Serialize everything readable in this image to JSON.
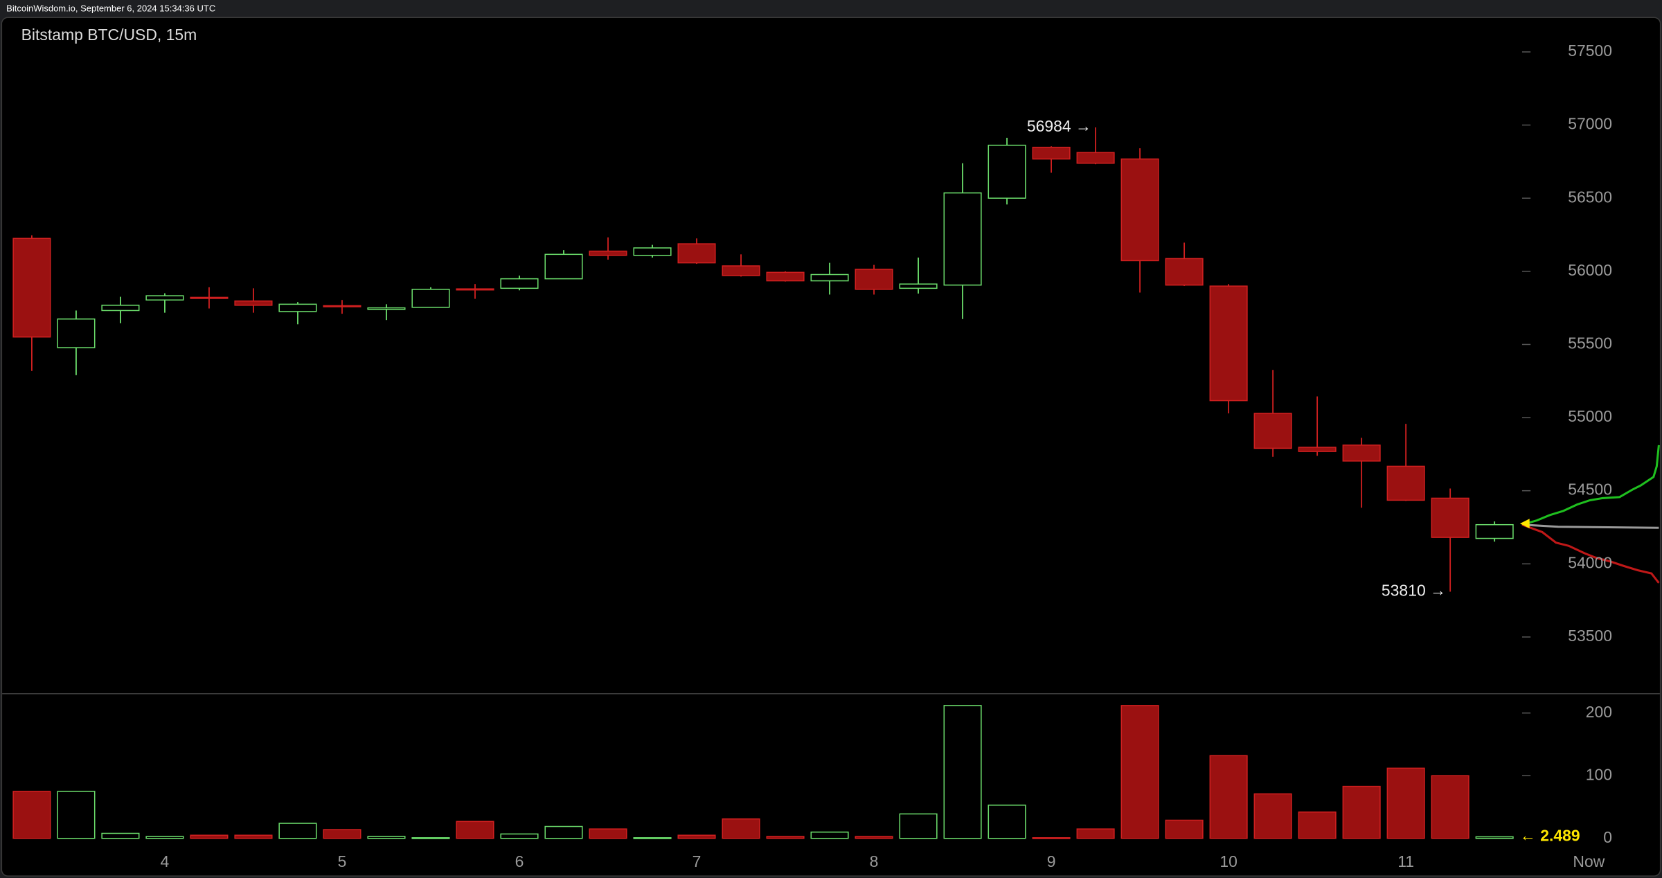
{
  "header": "BitcoinWisdom.io, September 6, 2024 15:34:36 UTC",
  "chart_data": {
    "type": "candlestick",
    "title": "Bitstamp BTC/USD, 15m",
    "categories": [
      null,
      null,
      null,
      "4",
      null,
      null,
      null,
      "5",
      null,
      null,
      null,
      "6",
      null,
      null,
      null,
      "7",
      null,
      null,
      null,
      "8",
      null,
      null,
      null,
      "9",
      null,
      null,
      null,
      "10",
      null,
      null,
      null,
      "11",
      null,
      null
    ],
    "x_end_label": "Now",
    "open": [
      56225,
      55478,
      55732,
      55804,
      55822,
      55797,
      55725,
      55765,
      55740,
      55754,
      55880,
      55884,
      55949,
      56138,
      56109,
      56188,
      56037,
      55993,
      55935,
      56014,
      55884,
      55906,
      56500,
      56848,
      56812,
      56768,
      56087,
      55899,
      55029,
      54797,
      54812,
      54667,
      54449,
      54174
    ],
    "high": [
      56246,
      55732,
      55826,
      55850,
      55891,
      55884,
      55790,
      55804,
      55775,
      55891,
      55913,
      55971,
      56145,
      56232,
      56181,
      56225,
      56116,
      56000,
      56058,
      56044,
      56094,
      56739,
      56913,
      56855,
      56984,
      56841,
      56196,
      55913,
      55326,
      55145,
      54862,
      54957,
      54515,
      54290
    ],
    "low": [
      55319,
      55290,
      55645,
      55717,
      55746,
      55717,
      55638,
      55710,
      55667,
      55754,
      55812,
      55870,
      55949,
      56080,
      56094,
      56051,
      55964,
      55930,
      55841,
      55841,
      55848,
      55674,
      56457,
      56674,
      56732,
      55855,
      55900,
      55029,
      54732,
      54739,
      54384,
      54430,
      53810,
      54152
    ],
    "close": [
      55551,
      55674,
      55768,
      55833,
      55815,
      55768,
      55775,
      55761,
      55750,
      55877,
      55874,
      55949,
      56116,
      56109,
      56160,
      56058,
      55971,
      55935,
      55978,
      55877,
      55913,
      56536,
      56862,
      56768,
      56739,
      56073,
      55906,
      55116,
      54790,
      54768,
      54703,
      54435,
      54181,
      54268
    ],
    "volume": [
      75,
      75,
      8,
      3,
      5,
      5,
      24,
      14,
      3,
      1,
      27,
      7,
      19,
      15,
      1,
      5,
      31,
      3,
      10,
      3,
      39,
      212,
      53,
      1,
      15,
      212,
      29,
      132,
      71,
      42,
      83,
      112,
      100,
      2.489
    ],
    "volume_value_labels": [
      null,
      null,
      null,
      null,
      null,
      null,
      null,
      null,
      null,
      null,
      null,
      null,
      null,
      null,
      null,
      null,
      null,
      null,
      null,
      null,
      null,
      null,
      null,
      null,
      null,
      null,
      null,
      null,
      null,
      null,
      null,
      null,
      null,
      "← 2.489"
    ],
    "annotations": [
      {
        "value": 56984,
        "label": "56984 →"
      },
      {
        "value": 53810,
        "label": "53810 →"
      }
    ],
    "ylim": [
      53116,
      57739
    ],
    "yticks": [
      53500,
      54000,
      54500,
      55000,
      55500,
      56000,
      56500,
      57000,
      57500
    ],
    "volume_ylim": [
      0,
      230
    ],
    "volume_ticks": [
      0,
      100,
      200
    ],
    "up_color": "#6bdc6b",
    "down_color": "#d02020",
    "down_fill": "#9b1111"
  }
}
